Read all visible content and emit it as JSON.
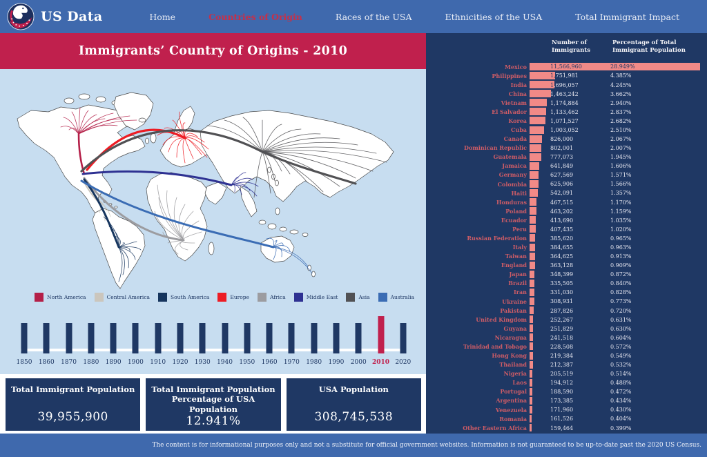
{
  "nav": {
    "brand": "US Data",
    "items": [
      {
        "label": "Home",
        "active": false
      },
      {
        "label": "Countries of Origin",
        "active": true
      },
      {
        "label": "Races of the USA",
        "active": false
      },
      {
        "label": "Ethnicities of the USA",
        "active": false
      },
      {
        "label": "Total Immigrant Impact",
        "active": false
      }
    ]
  },
  "left": {
    "title": "Immigrants’ Country of Origins - 2010",
    "legend": [
      {
        "label": "North America",
        "color": "#b41f48"
      },
      {
        "label": "Central America",
        "color": "#cbc6bd"
      },
      {
        "label": "South America",
        "color": "#16355e"
      },
      {
        "label": "Europe",
        "color": "#ed1c24"
      },
      {
        "label": "Africa",
        "color": "#9c9ca0"
      },
      {
        "label": "Middle East",
        "color": "#2e3192"
      },
      {
        "label": "Asia",
        "color": "#515154"
      },
      {
        "label": "Australia",
        "color": "#3a6cb4"
      }
    ],
    "timeline": {
      "years": [
        "1850",
        "1860",
        "1870",
        "1880",
        "1890",
        "1900",
        "1910",
        "1920",
        "1930",
        "1940",
        "1950",
        "1960",
        "1970",
        "1980",
        "1990",
        "2000",
        "2010",
        "2020"
      ],
      "active_year": "2010"
    },
    "stats": [
      {
        "label": "Total Immigrant Population",
        "value": "39,955,900"
      },
      {
        "label": "Total Immigrant Population Percentage of USA Population",
        "value": "12.941%"
      },
      {
        "label": "USA Population",
        "value": "308,745,538"
      }
    ]
  },
  "table": {
    "col1_header": "Number of Immigrants",
    "col2_header": "Percentage of Total Immigrant Population",
    "max_value": 11566960,
    "rows": [
      {
        "country": "Mexico",
        "immigrants": "11,566,960",
        "value": 11566960,
        "percent": "28.949%"
      },
      {
        "country": "Philippines",
        "immigrants": "1,751,981",
        "value": 1751981,
        "percent": "4.385%"
      },
      {
        "country": "India",
        "immigrants": "1,696,057",
        "value": 1696057,
        "percent": "4.245%"
      },
      {
        "country": "China",
        "immigrants": "1,463,242",
        "value": 1463242,
        "percent": "3.662%"
      },
      {
        "country": "Vietnam",
        "immigrants": "1,174,884",
        "value": 1174884,
        "percent": "2.940%"
      },
      {
        "country": "El Salvador",
        "immigrants": "1,133,462",
        "value": 1133462,
        "percent": "2.837%"
      },
      {
        "country": "Korea",
        "immigrants": "1,071,527",
        "value": 1071527,
        "percent": "2.682%"
      },
      {
        "country": "Cuba",
        "immigrants": "1,003,052",
        "value": 1003052,
        "percent": "2.510%"
      },
      {
        "country": "Canada",
        "immigrants": "826,000",
        "value": 826000,
        "percent": "2.067%"
      },
      {
        "country": "Dominican Republic",
        "immigrants": "802,001",
        "value": 802001,
        "percent": "2.007%"
      },
      {
        "country": "Guatemala",
        "immigrants": "777,073",
        "value": 777073,
        "percent": "1.945%"
      },
      {
        "country": "Jamaica",
        "immigrants": "641,849",
        "value": 641849,
        "percent": "1.606%"
      },
      {
        "country": "Germany",
        "immigrants": "627,569",
        "value": 627569,
        "percent": "1.571%"
      },
      {
        "country": "Colombia",
        "immigrants": "625,906",
        "value": 625906,
        "percent": "1.566%"
      },
      {
        "country": "Haiti",
        "immigrants": "542,091",
        "value": 542091,
        "percent": "1.357%"
      },
      {
        "country": "Honduras",
        "immigrants": "467,515",
        "value": 467515,
        "percent": "1.170%"
      },
      {
        "country": "Poland",
        "immigrants": "463,202",
        "value": 463202,
        "percent": "1.159%"
      },
      {
        "country": "Ecuador",
        "immigrants": "413,690",
        "value": 413690,
        "percent": "1.035%"
      },
      {
        "country": "Peru",
        "immigrants": "407,435",
        "value": 407435,
        "percent": "1.020%"
      },
      {
        "country": "Russian Federation",
        "immigrants": "385,620",
        "value": 385620,
        "percent": "0.965%"
      },
      {
        "country": "Italy",
        "immigrants": "384,655",
        "value": 384655,
        "percent": "0.963%"
      },
      {
        "country": "Taiwan",
        "immigrants": "364,625",
        "value": 364625,
        "percent": "0.913%"
      },
      {
        "country": "England",
        "immigrants": "363,128",
        "value": 363128,
        "percent": "0.909%"
      },
      {
        "country": "Japan",
        "immigrants": "348,399",
        "value": 348399,
        "percent": "0.872%"
      },
      {
        "country": "Brazil",
        "immigrants": "335,505",
        "value": 335505,
        "percent": "0.840%"
      },
      {
        "country": "Iran",
        "immigrants": "331,030",
        "value": 331030,
        "percent": "0.828%"
      },
      {
        "country": "Ukraine",
        "immigrants": "308,931",
        "value": 308931,
        "percent": "0.773%"
      },
      {
        "country": "Pakistan",
        "immigrants": "287,826",
        "value": 287826,
        "percent": "0.720%"
      },
      {
        "country": "United Kingdom",
        "immigrants": "252,267",
        "value": 252267,
        "percent": "0.631%"
      },
      {
        "country": "Guyana",
        "immigrants": "251,829",
        "value": 251829,
        "percent": "0.630%"
      },
      {
        "country": "Nicaragua",
        "immigrants": "241,518",
        "value": 241518,
        "percent": "0.604%"
      },
      {
        "country": "Trinidad and Tobago",
        "immigrants": "228,508",
        "value": 228508,
        "percent": "0.572%"
      },
      {
        "country": "Hong Kong",
        "immigrants": "219,384",
        "value": 219384,
        "percent": "0.549%"
      },
      {
        "country": "Thailand",
        "immigrants": "212,387",
        "value": 212387,
        "percent": "0.532%"
      },
      {
        "country": "Nigeria",
        "immigrants": "205,519",
        "value": 205519,
        "percent": "0.514%"
      },
      {
        "country": "Laos",
        "immigrants": "194,912",
        "value": 194912,
        "percent": "0.488%"
      },
      {
        "country": "Portugal",
        "immigrants": "188,590",
        "value": 188590,
        "percent": "0.472%"
      },
      {
        "country": "Argentina",
        "immigrants": "173,385",
        "value": 173385,
        "percent": "0.434%"
      },
      {
        "country": "Venezuela",
        "immigrants": "171,960",
        "value": 171960,
        "percent": "0.430%"
      },
      {
        "country": "Romania",
        "immigrants": "161,526",
        "value": 161526,
        "percent": "0.404%"
      },
      {
        "country": "Other Eastern Africa",
        "immigrants": "159,464",
        "value": 159464,
        "percent": "0.399%"
      }
    ]
  },
  "footer": {
    "disclaimer": "The content is for informational purposes only and not a substitute for official government websites. Information is not guaranteed to be up-to-date past the 2020 US Census."
  },
  "colors": {
    "nav_bar": "#3f69ad",
    "panel_navy": "#1f3864",
    "banner_crimson": "#c0204d",
    "map_background": "#c7ddf0",
    "bar_salmon": "#f18a87",
    "country_label": "#cd5c66",
    "active_nav_item": "#c5304a"
  }
}
